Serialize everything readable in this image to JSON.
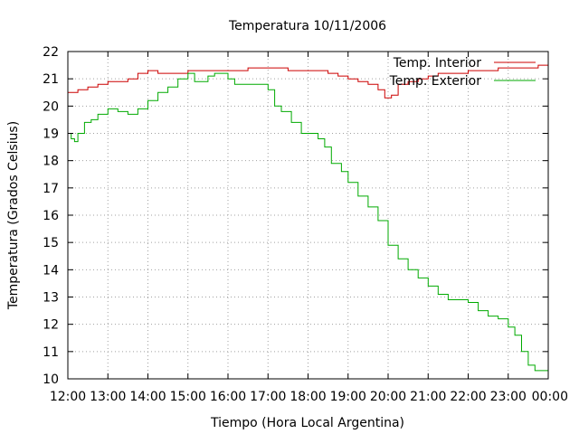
{
  "chart_data": {
    "type": "line",
    "title": "Temperatura 10/11/2006",
    "xlabel": "Tiempo (Hora Local Argentina)",
    "ylabel": "Temperatura (Grados Celsius)",
    "xlim": [
      12,
      24
    ],
    "ylim": [
      10,
      22
    ],
    "x_ticks": [
      "12:00",
      "13:00",
      "14:00",
      "15:00",
      "16:00",
      "17:00",
      "18:00",
      "19:00",
      "20:00",
      "21:00",
      "22:00",
      "23:00",
      "00:00"
    ],
    "y_ticks": [
      "10",
      "11",
      "12",
      "13",
      "14",
      "15",
      "16",
      "17",
      "18",
      "19",
      "20",
      "21",
      "22"
    ],
    "grid": true,
    "legend_position": "top-right",
    "series": [
      {
        "name": "Temp. Interior",
        "color": "#cc0000",
        "x": [
          "12:00",
          "12:15",
          "12:30",
          "12:45",
          "13:00",
          "13:15",
          "13:30",
          "13:45",
          "14:00",
          "14:15",
          "14:30",
          "14:45",
          "15:00",
          "15:15",
          "15:30",
          "15:45",
          "16:00",
          "16:15",
          "16:30",
          "16:45",
          "17:00",
          "17:15",
          "17:30",
          "17:45",
          "18:00",
          "18:15",
          "18:30",
          "18:45",
          "19:00",
          "19:15",
          "19:30",
          "19:45",
          "19:55",
          "20:05",
          "20:15",
          "20:30",
          "20:45",
          "21:00",
          "21:15",
          "21:30",
          "21:45",
          "22:00",
          "22:15",
          "22:30",
          "22:45",
          "23:00",
          "23:15",
          "23:30",
          "23:45",
          "23:55",
          "24:00"
        ],
        "values": [
          20.5,
          20.6,
          20.7,
          20.8,
          20.9,
          20.9,
          21.0,
          21.2,
          21.3,
          21.2,
          21.2,
          21.2,
          21.3,
          21.3,
          21.3,
          21.3,
          21.3,
          21.3,
          21.4,
          21.4,
          21.4,
          21.4,
          21.3,
          21.3,
          21.3,
          21.3,
          21.2,
          21.1,
          21.0,
          20.9,
          20.8,
          20.6,
          20.3,
          20.4,
          20.8,
          20.9,
          21.0,
          21.1,
          21.2,
          21.2,
          21.2,
          21.3,
          21.3,
          21.3,
          21.4,
          21.4,
          21.4,
          21.4,
          21.5,
          21.5,
          21.5
        ]
      },
      {
        "name": "Temp. Exterior",
        "color": "#00aa00",
        "x": [
          "12:00",
          "12:05",
          "12:10",
          "12:15",
          "12:25",
          "12:35",
          "12:45",
          "13:00",
          "13:15",
          "13:30",
          "13:45",
          "14:00",
          "14:15",
          "14:30",
          "14:45",
          "15:00",
          "15:10",
          "15:20",
          "15:30",
          "15:40",
          "15:50",
          "16:00",
          "16:10",
          "16:20",
          "16:40",
          "17:00",
          "17:10",
          "17:20",
          "17:35",
          "17:50",
          "18:00",
          "18:15",
          "18:25",
          "18:35",
          "18:50",
          "19:00",
          "19:15",
          "19:30",
          "19:45",
          "20:00",
          "20:15",
          "20:30",
          "20:45",
          "21:00",
          "21:15",
          "21:30",
          "21:45",
          "22:00",
          "22:15",
          "22:30",
          "22:45",
          "23:00",
          "23:10",
          "23:20",
          "23:30",
          "23:40",
          "23:50",
          "24:00"
        ],
        "values": [
          19.0,
          18.8,
          18.7,
          19.0,
          19.4,
          19.5,
          19.7,
          19.9,
          19.8,
          19.7,
          19.9,
          20.2,
          20.5,
          20.7,
          21.0,
          21.2,
          20.9,
          20.9,
          21.1,
          21.2,
          21.2,
          21.0,
          20.8,
          20.8,
          20.8,
          20.6,
          20.0,
          19.8,
          19.4,
          19.0,
          19.0,
          18.8,
          18.5,
          17.9,
          17.6,
          17.2,
          16.7,
          16.3,
          15.8,
          14.9,
          14.4,
          14.0,
          13.7,
          13.4,
          13.1,
          12.9,
          12.9,
          12.8,
          12.5,
          12.3,
          12.2,
          11.9,
          11.6,
          11.0,
          10.5,
          10.3,
          10.3,
          10.5
        ]
      }
    ]
  }
}
